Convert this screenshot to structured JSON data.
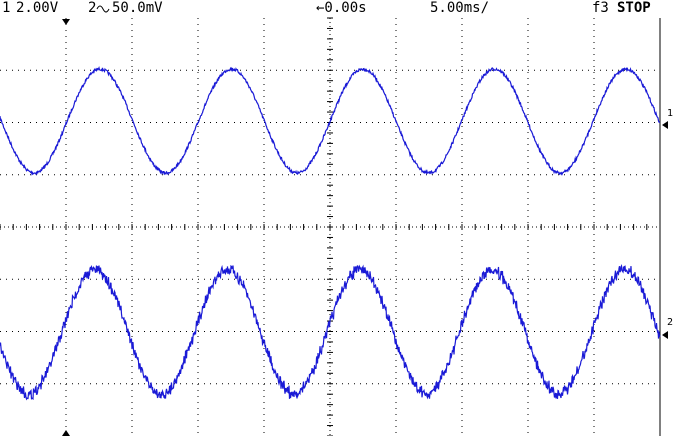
{
  "header": {
    "ch1_label": "1",
    "ch1_scale": "2.00V",
    "ch2_label": "2",
    "ch2_scale": "50.0mV",
    "time_offset": "←0.00s",
    "timebase": "5.00ms/",
    "trigger": "f3",
    "status": "STOP"
  },
  "markers": {
    "ch1": "1",
    "ch2": "2"
  }
}
